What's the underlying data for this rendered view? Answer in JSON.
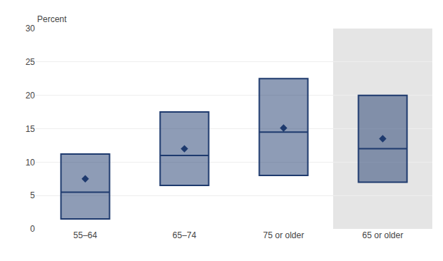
{
  "chart_data": {
    "type": "box",
    "ylabel": "Percent",
    "categories": [
      "55–64",
      "65–74",
      "75 or older",
      "65 or older"
    ],
    "series": [
      {
        "type": "box",
        "color": "#1e3a6e",
        "q1": [
          1.5,
          6.5,
          8.0,
          7.0
        ],
        "median": [
          5.5,
          11.0,
          14.5,
          12.0
        ],
        "q3": [
          11.2,
          17.5,
          22.5,
          20.0
        ]
      },
      {
        "type": "scatter",
        "marker": "diamond",
        "color": "#1e3a6e",
        "values": [
          7.5,
          12.0,
          15.1,
          13.5
        ]
      }
    ],
    "ylim": [
      0,
      30
    ],
    "yticks": [
      0,
      5,
      10,
      15,
      20,
      25,
      30
    ],
    "grid": true
  }
}
